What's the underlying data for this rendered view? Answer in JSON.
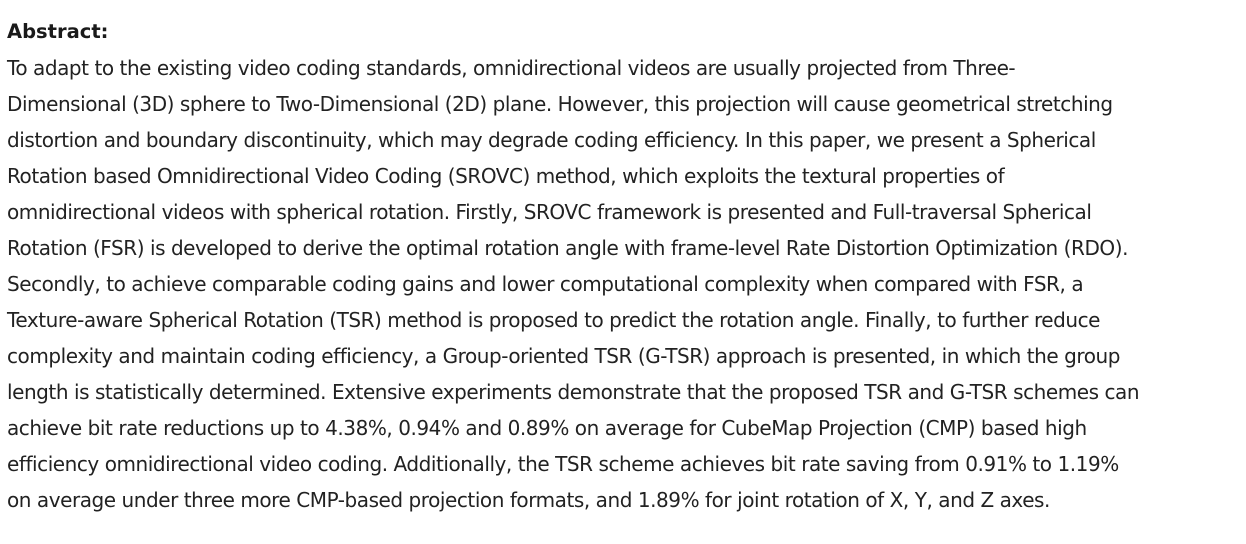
{
  "abstract": {
    "heading": "Abstract:",
    "lines": [
      "To adapt to the existing video coding standards, omnidirectional videos are usually projected from Three-",
      "Dimensional (3D) sphere to Two-Dimensional (2D) plane. However, this projection will cause geometrical stretching",
      "distortion and boundary discontinuity, which may degrade coding efficiency. In this paper, we present a Spherical",
      "Rotation based Omnidirectional Video Coding (SROVC) method, which exploits the textural properties of",
      "omnidirectional videos with spherical rotation. Firstly, SROVC framework is presented and Full-traversal Spherical",
      "Rotation (FSR) is developed to derive the optimal rotation angle with frame-level Rate Distortion Optimization (RDO).",
      "Secondly, to achieve comparable coding gains and lower computational complexity when compared with FSR, a",
      "Texture-aware Spherical Rotation (TSR) method is proposed to predict the rotation angle. Finally, to further reduce",
      "complexity and maintain coding efficiency, a Group-oriented TSR (G-TSR) approach is presented, in which the group",
      "length is statistically determined. Extensive experiments demonstrate that the proposed TSR and G-TSR schemes can",
      "achieve bit rate reductions up to 4.38%, 0.94% and 0.89% on average for CubeMap Projection (CMP) based high",
      "efficiency omnidirectional video coding. Additionally, the TSR scheme achieves bit rate saving from 0.91% to 1.19%",
      "on average under three more CMP-based projection formats, and 1.89% for joint rotation of X, Y, and Z axes."
    ]
  }
}
